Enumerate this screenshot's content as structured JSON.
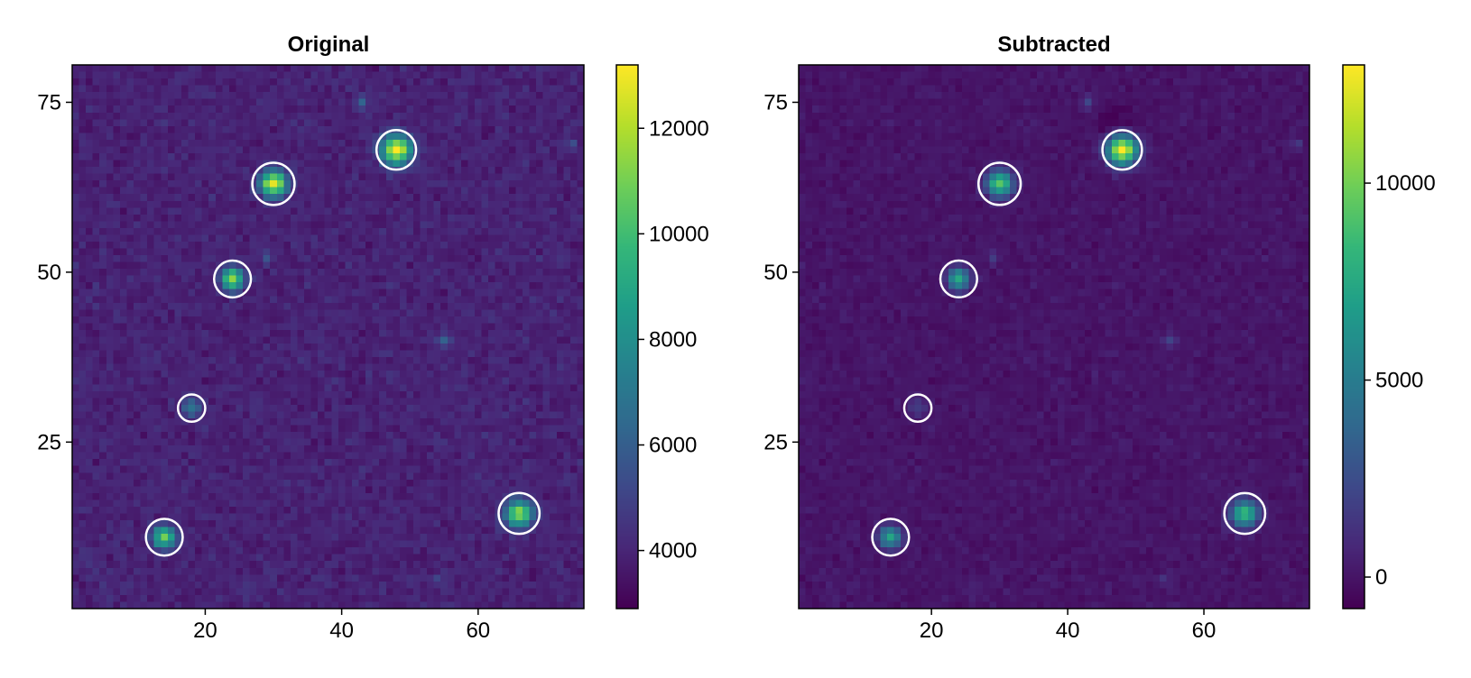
{
  "chart_data": [
    {
      "type": "heatmap",
      "title": "Original",
      "xlabel": "",
      "ylabel": "",
      "xlim": [
        0.5,
        75.5
      ],
      "ylim": [
        0.5,
        80.5
      ],
      "xticks": [
        20,
        40,
        60
      ],
      "yticks": [
        25,
        50,
        75
      ],
      "colormap": "viridis",
      "colorbar": {
        "range": [
          2900,
          13200
        ],
        "ticks": [
          4000,
          6000,
          8000,
          10000,
          12000
        ]
      },
      "background_level": 3900,
      "background_noise": 350,
      "sources": [
        {
          "x": 48,
          "y": 68,
          "peak": 13200,
          "sigma": 1.5
        },
        {
          "x": 30,
          "y": 63,
          "peak": 13000,
          "sigma": 1.3
        },
        {
          "x": 24,
          "y": 49,
          "peak": 11800,
          "sigma": 1.1
        },
        {
          "x": 18,
          "y": 30,
          "peak": 7000,
          "sigma": 1.0
        },
        {
          "x": 14,
          "y": 11,
          "peak": 11200,
          "sigma": 1.1
        },
        {
          "x": 66,
          "y": 14.5,
          "peak": 11500,
          "sigma": 1.4
        },
        {
          "x": 55,
          "y": 40,
          "peak": 6200,
          "sigma": 0.7
        },
        {
          "x": 43,
          "y": 75,
          "peak": 6000,
          "sigma": 0.7
        },
        {
          "x": 29,
          "y": 52,
          "peak": 5300,
          "sigma": 0.7
        },
        {
          "x": 73.5,
          "y": 69,
          "peak": 5000,
          "sigma": 0.7
        },
        {
          "x": 54,
          "y": 5,
          "peak": 5000,
          "sigma": 0.7
        },
        {
          "x": 3,
          "y": 7.5,
          "peak": 4700,
          "sigma": 0.8
        }
      ],
      "apertures": [
        {
          "x": 48,
          "y": 68,
          "r": 2.9
        },
        {
          "x": 30,
          "y": 63,
          "r": 3.1
        },
        {
          "x": 24,
          "y": 49,
          "r": 2.7
        },
        {
          "x": 18,
          "y": 30,
          "r": 2.0
        },
        {
          "x": 14,
          "y": 11,
          "r": 2.7
        },
        {
          "x": 66,
          "y": 14.5,
          "r": 3.0
        }
      ]
    },
    {
      "type": "heatmap",
      "title": "Subtracted",
      "xlabel": "",
      "ylabel": "",
      "xlim": [
        0.5,
        75.5
      ],
      "ylim": [
        0.5,
        80.5
      ],
      "xticks": [
        20,
        40,
        60
      ],
      "yticks": [
        25,
        50,
        75
      ],
      "colormap": "viridis",
      "colorbar": {
        "range": [
          -800,
          13000
        ],
        "ticks": [
          0,
          5000,
          10000
        ]
      },
      "background_level": 0,
      "background_noise": 300,
      "sources": [
        {
          "x": 48,
          "y": 68,
          "peak": 13000,
          "sigma": 1.5
        },
        {
          "x": 30,
          "y": 63,
          "peak": 9500,
          "sigma": 1.3
        },
        {
          "x": 24,
          "y": 49,
          "peak": 7800,
          "sigma": 1.1
        },
        {
          "x": 18,
          "y": 30,
          "peak": 1800,
          "sigma": 1.0
        },
        {
          "x": 14,
          "y": 11,
          "peak": 7500,
          "sigma": 1.1
        },
        {
          "x": 66,
          "y": 14.5,
          "peak": 8500,
          "sigma": 1.4
        },
        {
          "x": 55,
          "y": 40,
          "peak": 2100,
          "sigma": 0.7
        },
        {
          "x": 43,
          "y": 75,
          "peak": 2000,
          "sigma": 0.7
        },
        {
          "x": 29,
          "y": 52,
          "peak": 1400,
          "sigma": 0.7
        },
        {
          "x": 73.5,
          "y": 69,
          "peak": 1200,
          "sigma": 0.7
        },
        {
          "x": 54,
          "y": 5,
          "peak": 1200,
          "sigma": 0.7
        },
        {
          "x": 47,
          "y": 72,
          "peak": -900,
          "sigma": 2.0
        }
      ],
      "apertures": [
        {
          "x": 48,
          "y": 68,
          "r": 2.9
        },
        {
          "x": 30,
          "y": 63,
          "r": 3.1
        },
        {
          "x": 24,
          "y": 49,
          "r": 2.7
        },
        {
          "x": 18,
          "y": 30,
          "r": 2.0
        },
        {
          "x": 14,
          "y": 11,
          "r": 2.7
        },
        {
          "x": 66,
          "y": 14.5,
          "r": 3.0
        }
      ]
    }
  ],
  "colors": {
    "aperture": "#ffffff",
    "axes": "#000000",
    "viridis": [
      "#440154",
      "#482878",
      "#3e4989",
      "#31688e",
      "#26828e",
      "#1f9e89",
      "#35b779",
      "#6ece58",
      "#b5de2b",
      "#fde725"
    ]
  }
}
